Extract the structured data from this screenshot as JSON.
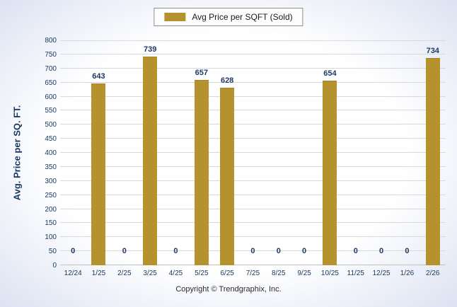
{
  "legend": {
    "label": "Avg Price per SQFT (Sold)",
    "swatch_color": "#B6922E"
  },
  "ylabel": "Avg. Price per SQ. FT.",
  "footer": "Copyright © Trendgraphix, Inc.",
  "colors": {
    "bar": "#B6922E",
    "value_label": "#1F3864",
    "axis_text": "#17375E",
    "gridline": "#d9d9d9"
  },
  "chart_data": {
    "type": "bar",
    "title": "Avg Price per SQFT (Sold)",
    "categories": [
      "12/24",
      "1/25",
      "2/25",
      "3/25",
      "4/25",
      "5/25",
      "6/25",
      "7/25",
      "8/25",
      "9/25",
      "10/25",
      "11/25",
      "12/25",
      "1/26",
      "2/26"
    ],
    "values": [
      0,
      643,
      0,
      739,
      0,
      657,
      628,
      0,
      0,
      0,
      654,
      0,
      0,
      0,
      734
    ],
    "xlabel": "",
    "ylabel": "Avg. Price per SQ. FT.",
    "ylim": [
      0,
      800
    ],
    "ytick_step": 50,
    "grid": true,
    "legend_position": "top",
    "bar_color": "#B6922E"
  }
}
